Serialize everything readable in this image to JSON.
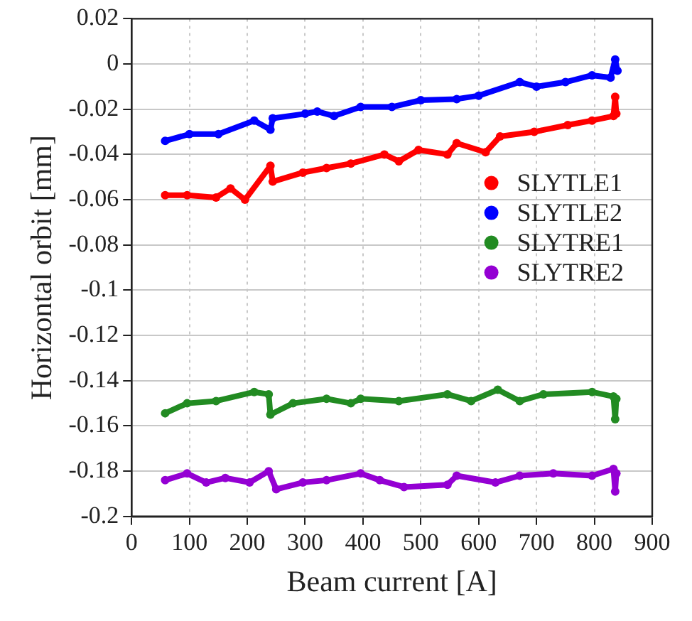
{
  "chart_data": {
    "type": "line",
    "xlabel": "Beam current [A]",
    "ylabel": "Horizontal orbit [mm]",
    "xlim": [
      0,
      900
    ],
    "xticks": [
      0,
      100,
      200,
      300,
      400,
      500,
      600,
      700,
      800,
      900
    ],
    "ylim": [
      -0.2,
      0.02
    ],
    "yticks": [
      -0.2,
      -0.18,
      -0.16,
      -0.14,
      -0.12,
      -0.1,
      -0.08,
      -0.06,
      -0.04,
      -0.02,
      0,
      0.02
    ],
    "grid": true,
    "legend": "right",
    "marker": "circle",
    "series": [
      {
        "name": "SLYTLE1",
        "color": "#ff0000",
        "x": [
          58,
          96,
          146,
          171,
          196,
          240,
          244,
          296,
          337,
          379,
          437,
          462,
          496,
          546,
          562,
          612,
          637,
          696,
          754,
          796,
          833,
          836,
          838
        ],
        "values": [
          -0.058,
          -0.058,
          -0.059,
          -0.055,
          -0.06,
          -0.045,
          -0.052,
          -0.048,
          -0.046,
          -0.044,
          -0.04,
          -0.043,
          -0.038,
          -0.04,
          -0.035,
          -0.039,
          -0.032,
          -0.03,
          -0.027,
          -0.025,
          -0.023,
          -0.0145,
          -0.022
        ]
      },
      {
        "name": "SLYTLE2",
        "color": "#0000ff",
        "x": [
          58,
          100,
          150,
          212,
          240,
          244,
          300,
          321,
          350,
          396,
          450,
          500,
          562,
          600,
          671,
          700,
          750,
          796,
          828,
          836,
          840
        ],
        "values": [
          -0.034,
          -0.031,
          -0.031,
          -0.025,
          -0.029,
          -0.024,
          -0.022,
          -0.021,
          -0.023,
          -0.019,
          -0.019,
          -0.016,
          -0.0155,
          -0.014,
          -0.008,
          -0.01,
          -0.008,
          -0.005,
          -0.006,
          0.002,
          -0.003
        ]
      },
      {
        "name": "SLYTRE1",
        "color": "#228b22",
        "x": [
          58,
          96,
          146,
          212,
          237,
          240,
          279,
          337,
          379,
          396,
          462,
          546,
          587,
          633,
          671,
          712,
          796,
          833,
          836,
          838
        ],
        "values": [
          -0.1544,
          -0.15,
          -0.149,
          -0.145,
          -0.146,
          -0.155,
          -0.15,
          -0.148,
          -0.15,
          -0.148,
          -0.149,
          -0.146,
          -0.149,
          -0.144,
          -0.149,
          -0.146,
          -0.145,
          -0.147,
          -0.157,
          -0.148
        ]
      },
      {
        "name": "SLYTRE2",
        "color": "#9400d3",
        "x": [
          58,
          96,
          129,
          162,
          204,
          237,
          250,
          296,
          337,
          396,
          429,
          471,
          546,
          562,
          629,
          671,
          729,
          796,
          833,
          836,
          838
        ],
        "values": [
          -0.184,
          -0.181,
          -0.185,
          -0.183,
          -0.185,
          -0.18,
          -0.188,
          -0.185,
          -0.184,
          -0.181,
          -0.184,
          -0.187,
          -0.186,
          -0.182,
          -0.185,
          -0.182,
          -0.181,
          -0.182,
          -0.179,
          -0.189,
          -0.181
        ]
      }
    ]
  }
}
